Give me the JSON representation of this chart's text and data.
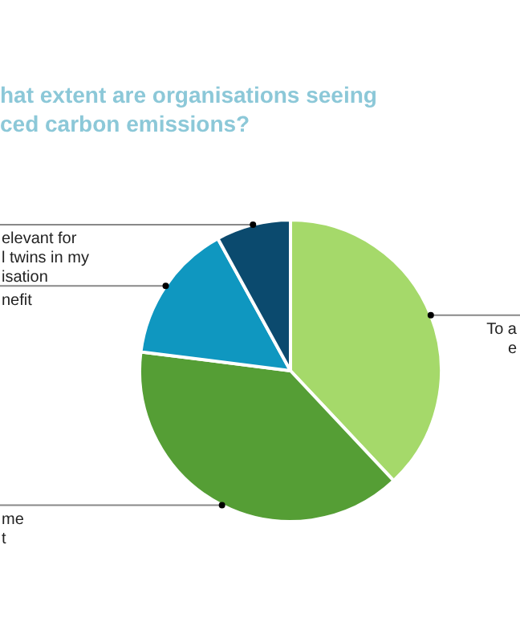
{
  "chart_data": {
    "type": "pie",
    "title": "hat extent are organisations seeing\nced carbon emissions?",
    "categories": [
      "To a\ne",
      "me\nt",
      "nefit",
      "elevant for\nl twins in my\nisation"
    ],
    "values": [
      38,
      39,
      15,
      8
    ],
    "colors": [
      "#a5d96a",
      "#559e35",
      "#0f97c0",
      "#0b4a6e"
    ],
    "legend": false
  }
}
